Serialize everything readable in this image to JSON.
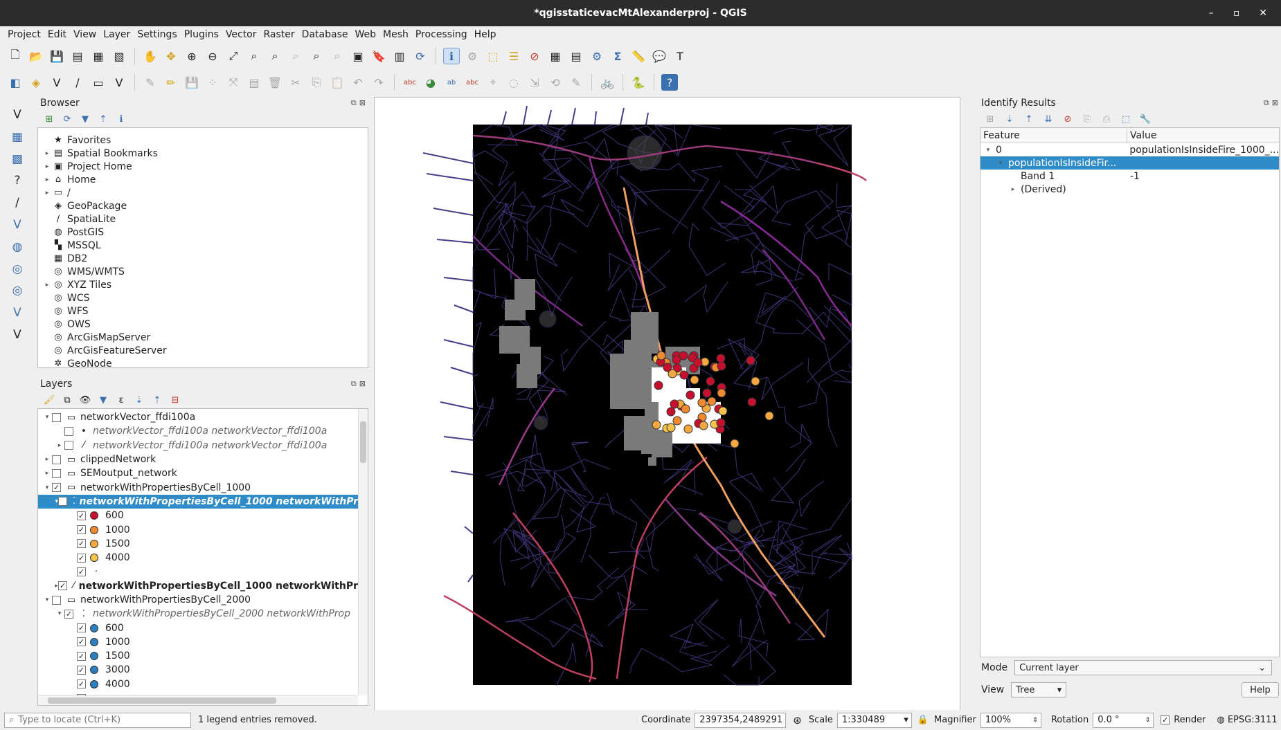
{
  "window": {
    "title": "*qgisstaticevacMtAlexanderproj - QGIS"
  },
  "menu": [
    "Project",
    "Edit",
    "View",
    "Layer",
    "Settings",
    "Plugins",
    "Vector",
    "Raster",
    "Database",
    "Web",
    "Mesh",
    "Processing",
    "Help"
  ],
  "browser": {
    "title": "Browser",
    "items": [
      {
        "label": "Favorites",
        "icon": "★",
        "exp": false
      },
      {
        "label": "Spatial Bookmarks",
        "icon": "▤",
        "exp": true
      },
      {
        "label": "Project Home",
        "icon": "▣",
        "exp": true
      },
      {
        "label": "Home",
        "icon": "⌂",
        "exp": true
      },
      {
        "label": "/",
        "icon": "▭",
        "exp": true
      },
      {
        "label": "GeoPackage",
        "icon": "◈",
        "exp": false
      },
      {
        "label": "SpatiaLite",
        "icon": "∕",
        "exp": false
      },
      {
        "label": "PostGIS",
        "icon": "◍",
        "exp": false
      },
      {
        "label": "MSSQL",
        "icon": "▚",
        "exp": false
      },
      {
        "label": "DB2",
        "icon": "▦",
        "exp": false
      },
      {
        "label": "WMS/WMTS",
        "icon": "◎",
        "exp": false
      },
      {
        "label": "XYZ Tiles",
        "icon": "◎",
        "exp": true
      },
      {
        "label": "WCS",
        "icon": "◎",
        "exp": false
      },
      {
        "label": "WFS",
        "icon": "◎",
        "exp": false
      },
      {
        "label": "OWS",
        "icon": "◎",
        "exp": false
      },
      {
        "label": "ArcGisMapServer",
        "icon": "◎",
        "exp": false
      },
      {
        "label": "ArcGisFeatureServer",
        "icon": "◎",
        "exp": false
      },
      {
        "label": "GeoNode",
        "icon": "✲",
        "exp": false
      }
    ]
  },
  "layers": {
    "title": "Layers",
    "rows": [
      {
        "indent": 0,
        "arrow": "▾",
        "checked": false,
        "icon": "▭",
        "label": "networkVector_ffdi100a",
        "style": ""
      },
      {
        "indent": 1,
        "arrow": "",
        "checked": false,
        "icon": "•",
        "label": "networkVector_ffdi100a networkVector_ffdi100a",
        "style": "it"
      },
      {
        "indent": 1,
        "arrow": "▸",
        "checked": false,
        "icon": "⁄",
        "label": "networkVector_ffdi100a networkVector_ffdi100a",
        "style": "it"
      },
      {
        "indent": 0,
        "arrow": "▸",
        "checked": false,
        "icon": "▭",
        "label": "clippedNetwork",
        "style": ""
      },
      {
        "indent": 0,
        "arrow": "▸",
        "checked": false,
        "icon": "▭",
        "label": "SEMoutput_network",
        "style": ""
      },
      {
        "indent": 0,
        "arrow": "▾",
        "checked": true,
        "icon": "▭",
        "label": "networkWithPropertiesByCell_1000",
        "style": ""
      },
      {
        "indent": 1,
        "arrow": "▾",
        "checked": true,
        "icon": "⁚",
        "label": "networkWithPropertiesByCell_1000 networkWithPr",
        "style": "sel it bold"
      },
      {
        "indent": 2,
        "arrow": "",
        "checked": true,
        "dot": "#c8102e",
        "label": "600",
        "style": ""
      },
      {
        "indent": 2,
        "arrow": "",
        "checked": true,
        "dot": "#f08a30",
        "label": "1000",
        "style": ""
      },
      {
        "indent": 2,
        "arrow": "",
        "checked": true,
        "dot": "#f5a840",
        "label": "1500",
        "style": ""
      },
      {
        "indent": 2,
        "arrow": "",
        "checked": true,
        "dot": "#f7c24a",
        "label": "4000",
        "style": ""
      },
      {
        "indent": 2,
        "arrow": "",
        "checked": true,
        "icon": "·",
        "label": "",
        "style": ""
      },
      {
        "indent": 1,
        "arrow": "▸",
        "checked": true,
        "icon": "⁄",
        "label": "networkWithPropertiesByCell_1000 networkWithPr",
        "style": "bold"
      },
      {
        "indent": 0,
        "arrow": "▾",
        "checked": false,
        "icon": "▭",
        "label": "networkWithPropertiesByCell_2000",
        "style": ""
      },
      {
        "indent": 1,
        "arrow": "▾",
        "checked": true,
        "icon": "⁚",
        "label": "networkWithPropertiesByCell_2000 networkWithProp",
        "style": "it"
      },
      {
        "indent": 2,
        "arrow": "",
        "checked": true,
        "dot": "#2a7fc0",
        "label": "600",
        "style": ""
      },
      {
        "indent": 2,
        "arrow": "",
        "checked": true,
        "dot": "#2a7fc0",
        "label": "1000",
        "style": ""
      },
      {
        "indent": 2,
        "arrow": "",
        "checked": true,
        "dot": "#2a7fc0",
        "label": "1500",
        "style": ""
      },
      {
        "indent": 2,
        "arrow": "",
        "checked": true,
        "dot": "#2a7fc0",
        "label": "3000",
        "style": ""
      },
      {
        "indent": 2,
        "arrow": "",
        "checked": true,
        "dot": "#2a7fc0",
        "label": "4000",
        "style": ""
      },
      {
        "indent": 2,
        "arrow": "",
        "checked": true,
        "icon": "·",
        "label": "",
        "style": ""
      }
    ]
  },
  "identify": {
    "title": "Identify Results",
    "col_feature": "Feature",
    "col_value": "Value",
    "rows": [
      {
        "indent": 0,
        "arrow": "▾",
        "feature": "0",
        "value": "populationIsInsideFire_1000_...",
        "sel": false
      },
      {
        "indent": 1,
        "arrow": "▾",
        "feature": "populationIsInsideFir...",
        "value": "",
        "sel": true
      },
      {
        "indent": 2,
        "arrow": "",
        "feature": "Band 1",
        "value": "-1",
        "sel": false
      },
      {
        "indent": 2,
        "arrow": "▸",
        "feature": "(Derived)",
        "value": "",
        "sel": false
      }
    ],
    "mode_label": "Mode",
    "mode_value": "Current layer",
    "view_label": "View",
    "view_value": "Tree",
    "help": "Help"
  },
  "status": {
    "locate_placeholder": "Type to locate (Ctrl+K)",
    "message": "1 legend entries removed.",
    "coord_label": "Coordinate",
    "coord_value": "2397354,2489291",
    "scale_label": "Scale",
    "scale_value": "1:330489",
    "magnifier_label": "Magnifier",
    "magnifier_value": "100%",
    "rotation_label": "Rotation",
    "rotation_value": "0.0 °",
    "render_label": "Render",
    "crs": "EPSG:3111"
  },
  "colors": {
    "selection": "#308cc6",
    "map_bg": "#000000"
  }
}
